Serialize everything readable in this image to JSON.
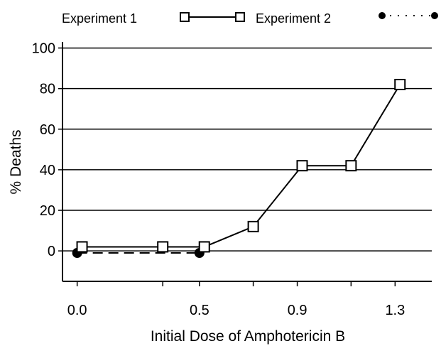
{
  "chart_data": {
    "type": "line",
    "title": "",
    "xlabel": "Initial Dose of Amphotericin B",
    "ylabel": "% Deaths",
    "x_tick_labels": [
      "0.0",
      "0.5",
      "0.9",
      "1.3"
    ],
    "y_tick_labels": [
      "0",
      "20",
      "40",
      "60",
      "80",
      "100"
    ],
    "ylim": [
      -15,
      103
    ],
    "grid": "horizontal",
    "legend_position": "top",
    "series": [
      {
        "name": "Experiment 1",
        "marker": "open-square",
        "line": "solid",
        "x": [
          0.02,
          0.35,
          0.52,
          0.72,
          0.92,
          1.12,
          1.32
        ],
        "y": [
          2,
          2,
          2,
          12,
          42,
          42,
          82
        ]
      },
      {
        "name": "Experiment 2",
        "marker": "filled-circle",
        "line": "dashed",
        "x": [
          0.0,
          0.5
        ],
        "y": [
          -1,
          -1
        ]
      }
    ]
  }
}
